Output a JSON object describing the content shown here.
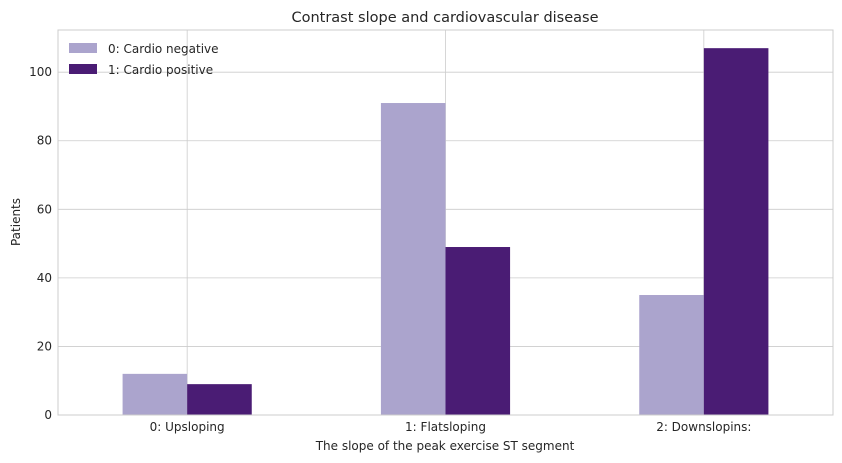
{
  "chart_data": {
    "type": "bar",
    "title": "Contrast slope and cardiovascular disease",
    "xlabel": "The slope of the peak exercise ST segment",
    "ylabel": "Patients",
    "categories": [
      "0: Upsloping",
      "1: Flatsloping",
      "2: Downslopins:"
    ],
    "series": [
      {
        "name": "0: Cardio negative",
        "values": [
          12,
          91,
          35
        ],
        "color": "#aba4cd"
      },
      {
        "name": "1: Cardio positive",
        "values": [
          9,
          49,
          107
        ],
        "color": "#4a1c74"
      }
    ],
    "ylim": [
      0,
      112.3
    ],
    "yticks": [
      0,
      20,
      40,
      60,
      80,
      100
    ],
    "grid": true,
    "legend_position": "top-left"
  }
}
